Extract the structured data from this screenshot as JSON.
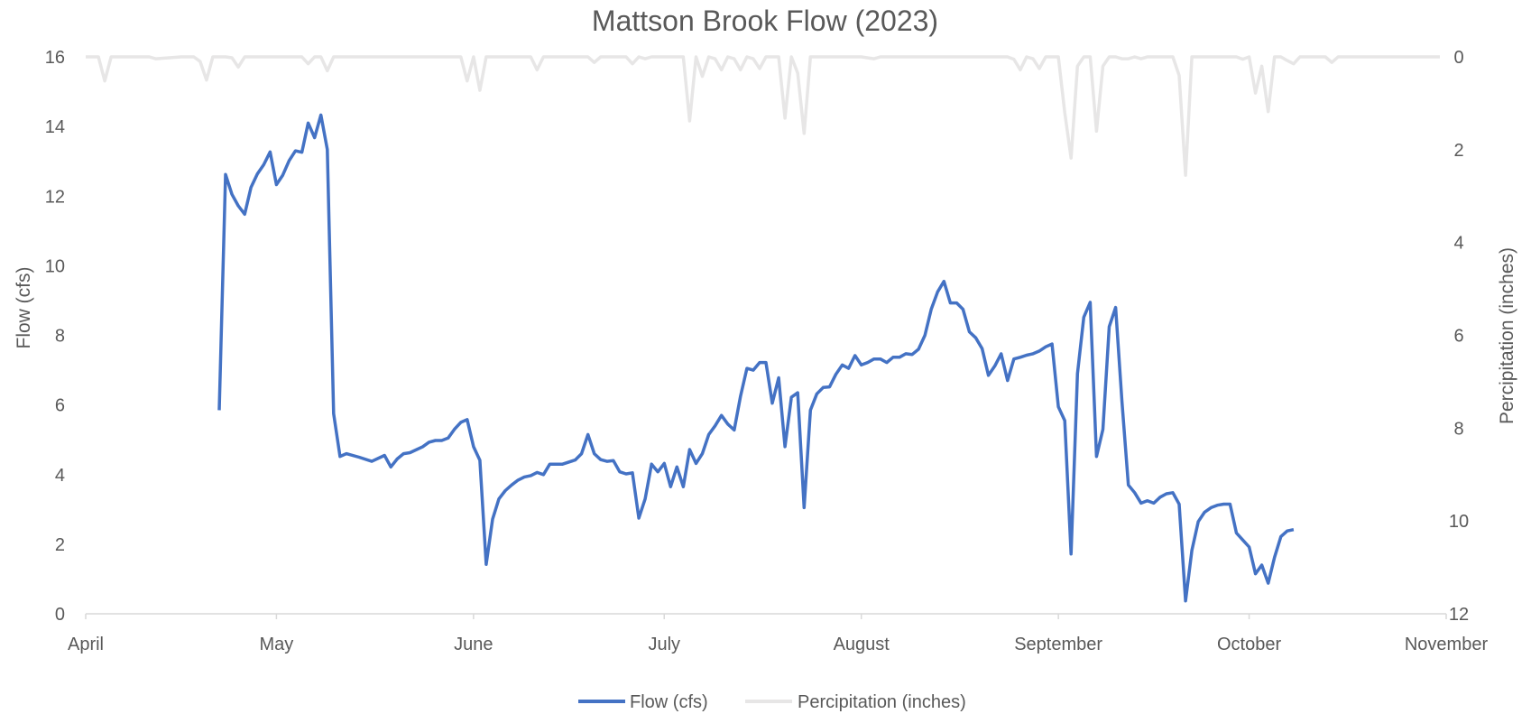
{
  "chart_data": {
    "type": "line",
    "title": "Mattson Brook Flow (2023)",
    "ylabel": "Flow (cfs)",
    "y2label": "Percipitation (inches)",
    "xlim": [
      "2023-04-01",
      "2023-11-01"
    ],
    "ylim": [
      0,
      16
    ],
    "y2lim": [
      0,
      12
    ],
    "y2_reversed": true,
    "y_ticks": [
      "0",
      "2",
      "4",
      "6",
      "8",
      "10",
      "12",
      "14",
      "16"
    ],
    "y2_ticks": [
      "0",
      "2",
      "4",
      "6",
      "8",
      "10",
      "12"
    ],
    "x_ticks": [
      {
        "date": "2023-04-01",
        "label": "April"
      },
      {
        "date": "2023-05-01",
        "label": "May"
      },
      {
        "date": "2023-06-01",
        "label": "June"
      },
      {
        "date": "2023-07-01",
        "label": "July"
      },
      {
        "date": "2023-08-01",
        "label": "August"
      },
      {
        "date": "2023-09-01",
        "label": "September"
      },
      {
        "date": "2023-10-01",
        "label": "October"
      },
      {
        "date": "2023-11-01",
        "label": "November"
      }
    ],
    "grid": false,
    "legend": "bottom",
    "series": [
      {
        "name": "Flow (cfs)",
        "axis": "left",
        "color": "#4472C4",
        "points": [
          [
            "2023-04-22",
            5.85
          ],
          [
            "2023-04-23",
            12.62
          ],
          [
            "2023-04-24",
            12.05
          ],
          [
            "2023-04-25",
            11.72
          ],
          [
            "2023-04-26",
            11.48
          ],
          [
            "2023-04-27",
            12.25
          ],
          [
            "2023-04-28",
            12.64
          ],
          [
            "2023-04-29",
            12.9
          ],
          [
            "2023-04-30",
            13.27
          ],
          [
            "2023-05-01",
            12.33
          ],
          [
            "2023-05-02",
            12.6
          ],
          [
            "2023-05-03",
            13.02
          ],
          [
            "2023-05-04",
            13.3
          ],
          [
            "2023-05-05",
            13.26
          ],
          [
            "2023-05-06",
            14.1
          ],
          [
            "2023-05-07",
            13.68
          ],
          [
            "2023-05-08",
            14.33
          ],
          [
            "2023-05-09",
            13.34
          ],
          [
            "2023-05-10",
            5.75
          ],
          [
            "2023-05-11",
            4.52
          ],
          [
            "2023-05-12",
            4.6
          ],
          [
            "2023-05-14",
            4.5
          ],
          [
            "2023-05-16",
            4.38
          ],
          [
            "2023-05-18",
            4.55
          ],
          [
            "2023-05-19",
            4.22
          ],
          [
            "2023-05-20",
            4.45
          ],
          [
            "2023-05-21",
            4.6
          ],
          [
            "2023-05-22",
            4.63
          ],
          [
            "2023-05-24",
            4.8
          ],
          [
            "2023-05-25",
            4.93
          ],
          [
            "2023-05-26",
            4.98
          ],
          [
            "2023-05-27",
            4.98
          ],
          [
            "2023-05-28",
            5.05
          ],
          [
            "2023-05-29",
            5.3
          ],
          [
            "2023-05-30",
            5.5
          ],
          [
            "2023-05-31",
            5.58
          ],
          [
            "2023-06-01",
            4.8
          ],
          [
            "2023-06-02",
            4.41
          ],
          [
            "2023-06-03",
            1.42
          ],
          [
            "2023-06-04",
            2.72
          ],
          [
            "2023-06-05",
            3.3
          ],
          [
            "2023-06-06",
            3.54
          ],
          [
            "2023-06-07",
            3.7
          ],
          [
            "2023-06-08",
            3.84
          ],
          [
            "2023-06-09",
            3.93
          ],
          [
            "2023-06-10",
            3.97
          ],
          [
            "2023-06-11",
            4.06
          ],
          [
            "2023-06-12",
            4.0
          ],
          [
            "2023-06-13",
            4.3
          ],
          [
            "2023-06-15",
            4.3
          ],
          [
            "2023-06-17",
            4.42
          ],
          [
            "2023-06-18",
            4.6
          ],
          [
            "2023-06-19",
            5.15
          ],
          [
            "2023-06-20",
            4.6
          ],
          [
            "2023-06-21",
            4.43
          ],
          [
            "2023-06-22",
            4.38
          ],
          [
            "2023-06-23",
            4.4
          ],
          [
            "2023-06-24",
            4.08
          ],
          [
            "2023-06-25",
            4.02
          ],
          [
            "2023-06-26",
            4.05
          ],
          [
            "2023-06-27",
            2.75
          ],
          [
            "2023-06-28",
            3.3
          ],
          [
            "2023-06-29",
            4.3
          ],
          [
            "2023-06-30",
            4.08
          ],
          [
            "2023-07-01",
            4.32
          ],
          [
            "2023-07-02",
            3.65
          ],
          [
            "2023-07-03",
            4.22
          ],
          [
            "2023-07-04",
            3.65
          ],
          [
            "2023-07-05",
            4.72
          ],
          [
            "2023-07-06",
            4.32
          ],
          [
            "2023-07-07",
            4.6
          ],
          [
            "2023-07-08",
            5.15
          ],
          [
            "2023-07-09",
            5.4
          ],
          [
            "2023-07-10",
            5.7
          ],
          [
            "2023-07-11",
            5.45
          ],
          [
            "2023-07-12",
            5.28
          ],
          [
            "2023-07-13",
            6.25
          ],
          [
            "2023-07-14",
            7.05
          ],
          [
            "2023-07-15",
            7.0
          ],
          [
            "2023-07-16",
            7.22
          ],
          [
            "2023-07-17",
            7.22
          ],
          [
            "2023-07-18",
            6.05
          ],
          [
            "2023-07-19",
            6.78
          ],
          [
            "2023-07-20",
            4.8
          ],
          [
            "2023-07-21",
            6.22
          ],
          [
            "2023-07-22",
            6.35
          ],
          [
            "2023-07-23",
            3.05
          ],
          [
            "2023-07-24",
            5.85
          ],
          [
            "2023-07-25",
            6.32
          ],
          [
            "2023-07-26",
            6.5
          ],
          [
            "2023-07-27",
            6.52
          ],
          [
            "2023-07-28",
            6.88
          ],
          [
            "2023-07-29",
            7.15
          ],
          [
            "2023-07-30",
            7.05
          ],
          [
            "2023-07-31",
            7.42
          ],
          [
            "2023-08-01",
            7.15
          ],
          [
            "2023-08-02",
            7.22
          ],
          [
            "2023-08-03",
            7.32
          ],
          [
            "2023-08-04",
            7.32
          ],
          [
            "2023-08-05",
            7.22
          ],
          [
            "2023-08-06",
            7.37
          ],
          [
            "2023-08-07",
            7.37
          ],
          [
            "2023-08-08",
            7.47
          ],
          [
            "2023-08-09",
            7.45
          ],
          [
            "2023-08-10",
            7.6
          ],
          [
            "2023-08-11",
            8.0
          ],
          [
            "2023-08-12",
            8.75
          ],
          [
            "2023-08-13",
            9.25
          ],
          [
            "2023-08-14",
            9.55
          ],
          [
            "2023-08-15",
            8.93
          ],
          [
            "2023-08-16",
            8.93
          ],
          [
            "2023-08-17",
            8.75
          ],
          [
            "2023-08-18",
            8.1
          ],
          [
            "2023-08-19",
            7.93
          ],
          [
            "2023-08-20",
            7.62
          ],
          [
            "2023-08-21",
            6.85
          ],
          [
            "2023-08-22",
            7.12
          ],
          [
            "2023-08-23",
            7.47
          ],
          [
            "2023-08-24",
            6.7
          ],
          [
            "2023-08-25",
            7.32
          ],
          [
            "2023-08-26",
            7.37
          ],
          [
            "2023-08-27",
            7.43
          ],
          [
            "2023-08-28",
            7.47
          ],
          [
            "2023-08-29",
            7.55
          ],
          [
            "2023-08-30",
            7.67
          ],
          [
            "2023-08-31",
            7.75
          ],
          [
            "2023-09-01",
            5.95
          ],
          [
            "2023-09-02",
            5.55
          ],
          [
            "2023-09-03",
            1.72
          ],
          [
            "2023-09-04",
            6.9
          ],
          [
            "2023-09-05",
            8.52
          ],
          [
            "2023-09-06",
            8.95
          ],
          [
            "2023-09-07",
            4.52
          ],
          [
            "2023-09-08",
            5.3
          ],
          [
            "2023-09-09",
            8.25
          ],
          [
            "2023-09-10",
            8.8
          ],
          [
            "2023-09-11",
            6.1
          ],
          [
            "2023-09-12",
            3.7
          ],
          [
            "2023-09-13",
            3.48
          ],
          [
            "2023-09-14",
            3.18
          ],
          [
            "2023-09-15",
            3.25
          ],
          [
            "2023-09-16",
            3.18
          ],
          [
            "2023-09-17",
            3.35
          ],
          [
            "2023-09-18",
            3.45
          ],
          [
            "2023-09-19",
            3.48
          ],
          [
            "2023-09-20",
            3.15
          ],
          [
            "2023-09-21",
            0.37
          ],
          [
            "2023-09-22",
            1.82
          ],
          [
            "2023-09-23",
            2.65
          ],
          [
            "2023-09-24",
            2.92
          ],
          [
            "2023-09-25",
            3.05
          ],
          [
            "2023-09-26",
            3.12
          ],
          [
            "2023-09-27",
            3.15
          ],
          [
            "2023-09-28",
            3.15
          ],
          [
            "2023-09-29",
            2.32
          ],
          [
            "2023-09-30",
            2.12
          ],
          [
            "2023-10-01",
            1.92
          ],
          [
            "2023-10-02",
            1.15
          ],
          [
            "2023-10-03",
            1.4
          ],
          [
            "2023-10-04",
            0.88
          ],
          [
            "2023-10-05",
            1.62
          ],
          [
            "2023-10-06",
            2.22
          ],
          [
            "2023-10-07",
            2.38
          ],
          [
            "2023-10-08",
            2.42
          ]
        ]
      },
      {
        "name": "Percipitation (inches)",
        "axis": "right",
        "color": "#E7E6E6",
        "points": [
          [
            "2023-04-01",
            0
          ],
          [
            "2023-04-02",
            0
          ],
          [
            "2023-04-03",
            0
          ],
          [
            "2023-04-04",
            0.52
          ],
          [
            "2023-04-05",
            0
          ],
          [
            "2023-04-11",
            0
          ],
          [
            "2023-04-12",
            0.04
          ],
          [
            "2023-04-16",
            0
          ],
          [
            "2023-04-18",
            0
          ],
          [
            "2023-04-19",
            0.1
          ],
          [
            "2023-04-20",
            0.5
          ],
          [
            "2023-04-21",
            0
          ],
          [
            "2023-04-22",
            0
          ],
          [
            "2023-04-23",
            0
          ],
          [
            "2023-04-24",
            0.02
          ],
          [
            "2023-04-25",
            0.22
          ],
          [
            "2023-04-26",
            0
          ],
          [
            "2023-05-05",
            0
          ],
          [
            "2023-05-06",
            0.15
          ],
          [
            "2023-05-07",
            0
          ],
          [
            "2023-05-08",
            0
          ],
          [
            "2023-05-09",
            0.3
          ],
          [
            "2023-05-10",
            0
          ],
          [
            "2023-05-30",
            0
          ],
          [
            "2023-05-31",
            0.52
          ],
          [
            "2023-06-01",
            0
          ],
          [
            "2023-06-02",
            0.72
          ],
          [
            "2023-06-03",
            0
          ],
          [
            "2023-06-10",
            0
          ],
          [
            "2023-06-11",
            0.28
          ],
          [
            "2023-06-12",
            0
          ],
          [
            "2023-06-19",
            0
          ],
          [
            "2023-06-20",
            0.12
          ],
          [
            "2023-06-21",
            0
          ],
          [
            "2023-06-25",
            0
          ],
          [
            "2023-06-26",
            0.15
          ],
          [
            "2023-06-27",
            0
          ],
          [
            "2023-06-28",
            0.04
          ],
          [
            "2023-06-29",
            0
          ],
          [
            "2023-07-04",
            0
          ],
          [
            "2023-07-05",
            1.38
          ],
          [
            "2023-07-06",
            0
          ],
          [
            "2023-07-07",
            0.42
          ],
          [
            "2023-07-08",
            0
          ],
          [
            "2023-07-09",
            0.04
          ],
          [
            "2023-07-10",
            0.28
          ],
          [
            "2023-07-11",
            0
          ],
          [
            "2023-07-12",
            0.04
          ],
          [
            "2023-07-13",
            0.28
          ],
          [
            "2023-07-14",
            0
          ],
          [
            "2023-07-15",
            0.04
          ],
          [
            "2023-07-16",
            0.25
          ],
          [
            "2023-07-17",
            0
          ],
          [
            "2023-07-18",
            0
          ],
          [
            "2023-07-19",
            0
          ],
          [
            "2023-07-20",
            1.32
          ],
          [
            "2023-07-21",
            0
          ],
          [
            "2023-07-22",
            0.35
          ],
          [
            "2023-07-23",
            1.65
          ],
          [
            "2023-07-24",
            0
          ],
          [
            "2023-08-01",
            0
          ],
          [
            "2023-08-03",
            0.04
          ],
          [
            "2023-08-04",
            0
          ],
          [
            "2023-08-24",
            0
          ],
          [
            "2023-08-25",
            0.05
          ],
          [
            "2023-08-26",
            0.28
          ],
          [
            "2023-08-27",
            0
          ],
          [
            "2023-08-28",
            0.04
          ],
          [
            "2023-08-29",
            0.25
          ],
          [
            "2023-08-30",
            0
          ],
          [
            "2023-09-01",
            0
          ],
          [
            "2023-09-02",
            1.2
          ],
          [
            "2023-09-03",
            2.18
          ],
          [
            "2023-09-04",
            0.2
          ],
          [
            "2023-09-05",
            0
          ],
          [
            "2023-09-06",
            0
          ],
          [
            "2023-09-07",
            1.6
          ],
          [
            "2023-09-08",
            0.2
          ],
          [
            "2023-09-09",
            0
          ],
          [
            "2023-09-10",
            0
          ],
          [
            "2023-09-11",
            0.04
          ],
          [
            "2023-09-12",
            0.04
          ],
          [
            "2023-09-13",
            0
          ],
          [
            "2023-09-14",
            0.04
          ],
          [
            "2023-09-15",
            0
          ],
          [
            "2023-09-16",
            0
          ],
          [
            "2023-09-17",
            0
          ],
          [
            "2023-09-18",
            0
          ],
          [
            "2023-09-19",
            0
          ],
          [
            "2023-09-20",
            0.4
          ],
          [
            "2023-09-21",
            2.55
          ],
          [
            "2023-09-22",
            0
          ],
          [
            "2023-09-23",
            0
          ],
          [
            "2023-09-24",
            0
          ],
          [
            "2023-09-29",
            0
          ],
          [
            "2023-09-30",
            0.05
          ],
          [
            "2023-10-01",
            0
          ],
          [
            "2023-10-02",
            0.78
          ],
          [
            "2023-10-03",
            0.2
          ],
          [
            "2023-10-04",
            1.18
          ],
          [
            "2023-10-05",
            0
          ],
          [
            "2023-10-06",
            0
          ],
          [
            "2023-10-07",
            0.08
          ],
          [
            "2023-10-08",
            0.15
          ],
          [
            "2023-10-09",
            0
          ],
          [
            "2023-10-13",
            0
          ],
          [
            "2023-10-14",
            0.12
          ],
          [
            "2023-10-15",
            0
          ],
          [
            "2023-10-31",
            0
          ]
        ]
      }
    ]
  }
}
